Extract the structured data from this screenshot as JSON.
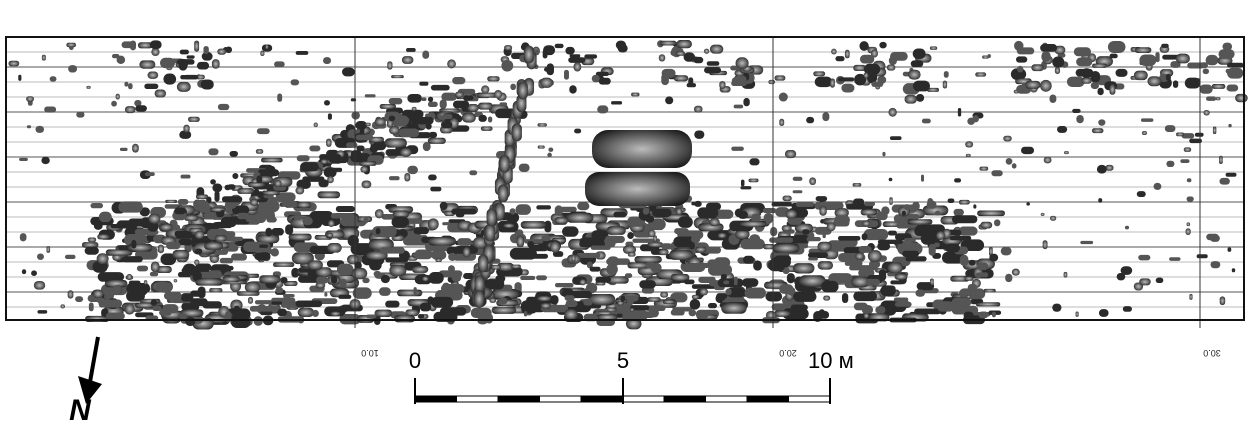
{
  "grid_labels": [
    "10.0",
    "20.0",
    "30.0"
  ],
  "scale_bar": {
    "labels": [
      "0",
      "5",
      "10 м"
    ]
  },
  "north": "N"
}
